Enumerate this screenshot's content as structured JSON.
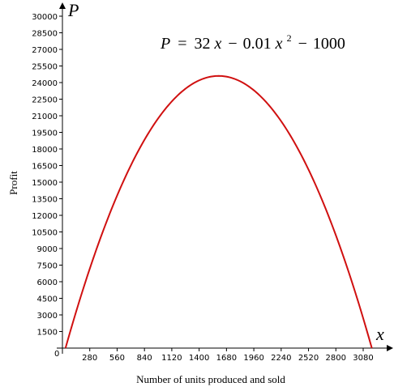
{
  "chart_data": {
    "type": "line",
    "equation": {
      "lhs": "P",
      "eq": "=",
      "c1": "32",
      "v1": "x",
      "minus1": "−",
      "c2": "0.01",
      "v2": "x",
      "exp": "2",
      "minus2": "−",
      "c3": "1000"
    },
    "coefficients": {
      "a": -0.01,
      "b": 32,
      "c": -1000
    },
    "xlabel": "Number of units produced and sold",
    "ylabel": "Profit",
    "x_axis_var": "x",
    "y_axis_var": "P",
    "origin_label": "0",
    "xlim": [
      0,
      3300
    ],
    "ylim": [
      0,
      30000
    ],
    "x_ticks": [
      280,
      560,
      840,
      1120,
      1400,
      1680,
      1960,
      2240,
      2520,
      2800,
      3080
    ],
    "y_ticks": [
      1500,
      3000,
      4500,
      6000,
      7500,
      9000,
      10500,
      12000,
      13500,
      15000,
      16500,
      18000,
      19500,
      21000,
      22500,
      24000,
      25500,
      27000,
      28500,
      30000
    ],
    "series": [
      {
        "color": "#d01010",
        "domain": [
          31.5,
          3168.5
        ]
      }
    ],
    "grid": false
  }
}
